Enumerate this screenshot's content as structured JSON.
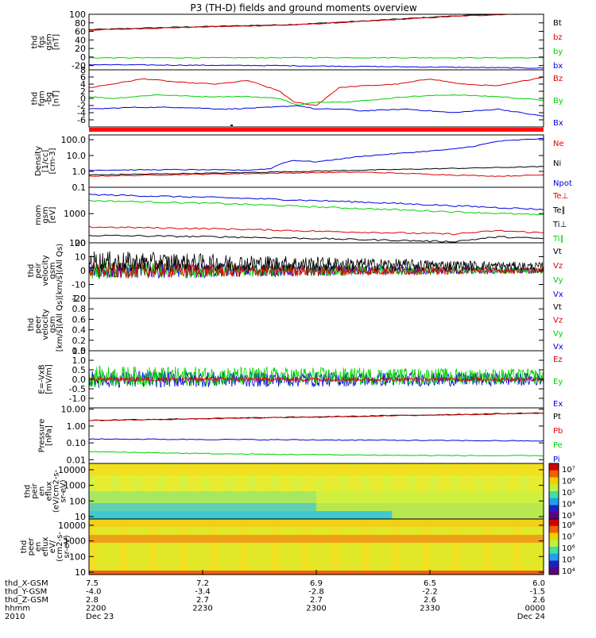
{
  "title": "P3 (TH-D) fields and ground moments overview",
  "colors": {
    "black": "#000000",
    "red": "#e00000",
    "green": "#00d000",
    "blue": "#0000e0"
  },
  "chart_data": [
    {
      "id": "fgs",
      "type": "line",
      "ylabel": [
        "thd",
        "fgs",
        "gsm",
        "[nT]"
      ],
      "ylim": [
        -30,
        100
      ],
      "yticks": [
        -20,
        0,
        20,
        40,
        60,
        80,
        100
      ],
      "legend": [
        {
          "name": "Bt",
          "color": "black"
        },
        {
          "name": "bz",
          "color": "red"
        },
        {
          "name": "by",
          "color": "green"
        },
        {
          "name": "bx",
          "color": "blue"
        }
      ],
      "series": [
        {
          "color": "black",
          "x": [
            0,
            0.2,
            0.45,
            0.6,
            0.8,
            1
          ],
          "y": [
            64,
            70,
            76,
            84,
            96,
            104
          ]
        },
        {
          "color": "red",
          "x": [
            0,
            0.2,
            0.45,
            0.6,
            0.8,
            1
          ],
          "y": [
            63,
            69,
            75,
            83,
            95,
            103
          ]
        },
        {
          "color": "green",
          "x": [
            0,
            0.5,
            1
          ],
          "y": [
            -2,
            -1.5,
            -2
          ]
        },
        {
          "color": "blue",
          "x": [
            0,
            0.4,
            0.8,
            1
          ],
          "y": [
            -18,
            -20,
            -24,
            -26
          ]
        }
      ]
    },
    {
      "id": "fgm",
      "type": "line",
      "ylabel": [
        "thd",
        "fgm",
        "-bg",
        "[nT]"
      ],
      "ylim": [
        -8,
        8
      ],
      "yticks": [
        -6,
        -4,
        -2,
        0,
        2,
        4,
        6,
        8
      ],
      "legend": [
        {
          "name": "Bz",
          "color": "red"
        },
        {
          "name": "By",
          "color": "green"
        },
        {
          "name": "Bx",
          "color": "blue"
        }
      ],
      "series": [
        {
          "color": "red",
          "x": [
            0,
            0.05,
            0.12,
            0.2,
            0.28,
            0.35,
            0.42,
            0.45,
            0.5,
            0.55,
            0.6,
            0.68,
            0.75,
            0.82,
            0.9,
            1
          ],
          "y": [
            3,
            4,
            5.5,
            4.5,
            4,
            5,
            2,
            -1,
            -2,
            3,
            3.5,
            4,
            5.5,
            4,
            3.5,
            6
          ]
        },
        {
          "color": "green",
          "x": [
            0,
            0.05,
            0.15,
            0.25,
            0.35,
            0.42,
            0.46,
            0.5,
            0.56,
            0.62,
            0.7,
            0.8,
            0.9,
            1
          ],
          "y": [
            0.5,
            0,
            1,
            0.5,
            0.5,
            0,
            -2,
            -1,
            -1,
            -0.5,
            0.5,
            1,
            0.5,
            -0.5
          ]
        },
        {
          "color": "blue",
          "x": [
            0,
            0.1,
            0.2,
            0.3,
            0.4,
            0.46,
            0.5,
            0.56,
            0.6,
            0.7,
            0.8,
            0.9,
            1
          ],
          "y": [
            -3,
            -2.5,
            -2.5,
            -3,
            -2.5,
            -2,
            -3,
            -3,
            -3.5,
            -3,
            -4,
            -3,
            -5
          ]
        }
      ]
    },
    {
      "id": "density",
      "type": "line",
      "scale": "log",
      "ylabel": [
        "Density",
        "[1/cc]",
        "[cm-3]"
      ],
      "ylim": [
        0.1,
        200
      ],
      "yticks": [
        0.1,
        1.0,
        10.0,
        100.0
      ],
      "ytick_labels": [
        "0.1",
        "1.0",
        "10.0",
        "100.0"
      ],
      "legend": [
        {
          "name": "Ne",
          "color": "red"
        },
        {
          "name": "Ni",
          "color": "black"
        },
        {
          "name": "Npot",
          "color": "blue"
        }
      ],
      "series": [
        {
          "color": "black",
          "x": [
            0,
            0.3,
            0.6,
            1
          ],
          "y": [
            0.6,
            0.8,
            1.2,
            2.0
          ]
        },
        {
          "color": "red",
          "x": [
            0,
            0.3,
            0.6,
            0.8,
            0.9,
            1
          ],
          "y": [
            0.5,
            0.7,
            0.9,
            0.6,
            0.5,
            0.6
          ]
        },
        {
          "color": "blue",
          "x": [
            0,
            0.2,
            0.35,
            0.4,
            0.42,
            0.45,
            0.5,
            0.55,
            0.6,
            0.7,
            0.8,
            0.85,
            0.9,
            1
          ],
          "y": [
            1.2,
            1.3,
            1.2,
            1.5,
            3,
            5,
            4,
            6,
            9,
            15,
            25,
            40,
            80,
            120
          ]
        }
      ]
    },
    {
      "id": "temp",
      "type": "line",
      "scale": "log",
      "ylabel": [
        "mom",
        "gsm",
        "[eV]"
      ],
      "ylim": [
        100,
        8000
      ],
      "yticks": [
        100,
        1000
      ],
      "ytick_labels": [
        "100",
        "1000"
      ],
      "legend": [
        {
          "name": "Te⊥",
          "color": "red"
        },
        {
          "name": "Te∥",
          "color": "black"
        },
        {
          "name": "Ti⊥",
          "color": "black"
        },
        {
          "name": "Ti∥",
          "color": "green"
        }
      ],
      "series": [
        {
          "color": "blue",
          "x": [
            0,
            0.3,
            0.6,
            1
          ],
          "y": [
            4500,
            3500,
            2500,
            1400
          ]
        },
        {
          "color": "green",
          "x": [
            0,
            0.3,
            0.6,
            1
          ],
          "y": [
            2800,
            2200,
            1500,
            900
          ]
        },
        {
          "color": "red",
          "x": [
            0,
            0.3,
            0.5,
            0.8,
            0.9,
            1
          ],
          "y": [
            350,
            300,
            250,
            200,
            260,
            220
          ]
        },
        {
          "color": "black",
          "x": [
            0,
            0.3,
            0.5,
            0.8,
            0.9,
            1
          ],
          "y": [
            180,
            160,
            140,
            110,
            160,
            140
          ]
        }
      ]
    },
    {
      "id": "peir_vel",
      "type": "line",
      "ylabel": [
        "thd",
        "peir",
        "velocity",
        "gsm",
        "[km/s](All Qs)"
      ],
      "ylim": [
        -20,
        20
      ],
      "yticks": [
        -20,
        -10,
        0,
        10,
        20
      ],
      "legend": [
        {
          "name": "Vt",
          "color": "black"
        },
        {
          "name": "Vz",
          "color": "red"
        },
        {
          "name": "Vy",
          "color": "green"
        },
        {
          "name": "Vx",
          "color": "blue"
        }
      ],
      "series": []
    },
    {
      "id": "peer_vel",
      "type": "line",
      "ylabel": [
        "thd",
        "peer",
        "velocity",
        "gsm",
        "[km/s](All Qs)"
      ],
      "ylim": [
        0,
        1
      ],
      "yticks": [
        0,
        0.2,
        0.4,
        0.6,
        0.8,
        1.0
      ],
      "ytick_labels": [
        "0.0",
        "0.2",
        "0.4",
        "0.6",
        "0.8",
        "1.0"
      ],
      "legend": [
        {
          "name": "Vt",
          "color": "black"
        },
        {
          "name": "Vz",
          "color": "red"
        },
        {
          "name": "Vy",
          "color": "green"
        },
        {
          "name": "Vx",
          "color": "blue"
        }
      ],
      "series": []
    },
    {
      "id": "efield",
      "type": "line",
      "ylabel": [
        "E=-VxB",
        "[mV/m]"
      ],
      "ylim": [
        -1.5,
        1.5
      ],
      "yticks": [
        -1.0,
        -0.5,
        0,
        0.5,
        1.0,
        1.5
      ],
      "ytick_labels": [
        "-1.0",
        "-0.5",
        "0.0",
        "0.5",
        "1.0",
        "1.5"
      ],
      "legend": [
        {
          "name": "Ez",
          "color": "red"
        },
        {
          "name": "Ey",
          "color": "green"
        },
        {
          "name": "Ex",
          "color": "blue"
        }
      ],
      "series": []
    },
    {
      "id": "pressure",
      "type": "line",
      "scale": "log",
      "ylabel": [
        "Pressure",
        "[nPa]"
      ],
      "ylim": [
        0.006,
        12
      ],
      "yticks": [
        0.01,
        0.1,
        1.0,
        10.0
      ],
      "ytick_labels": [
        "0.01",
        "0.10",
        "1.00",
        "10.00"
      ],
      "legend": [
        {
          "name": "Pt",
          "color": "black"
        },
        {
          "name": "Pb",
          "color": "red"
        },
        {
          "name": "Pe",
          "color": "green"
        },
        {
          "name": "Pi",
          "color": "blue"
        }
      ],
      "series": [
        {
          "color": "black",
          "x": [
            0,
            0.5,
            1
          ],
          "y": [
            2.2,
            3.5,
            6.0
          ]
        },
        {
          "color": "red",
          "x": [
            0,
            0.5,
            1
          ],
          "y": [
            2.1,
            3.4,
            5.8
          ]
        },
        {
          "color": "blue",
          "x": [
            0,
            0.5,
            1
          ],
          "y": [
            0.17,
            0.15,
            0.13
          ]
        },
        {
          "color": "green",
          "x": [
            0,
            0.3,
            0.5,
            0.7,
            1
          ],
          "y": [
            0.03,
            0.022,
            0.02,
            0.018,
            0.017
          ]
        }
      ]
    },
    {
      "id": "peir_spec",
      "type": "heatmap",
      "ylabel": [
        "thd",
        "peir",
        "en",
        "eflux",
        "(eV/cm2-s-",
        "sr-eV)"
      ],
      "yticks": [
        10,
        100,
        1000,
        10000
      ],
      "ytick_labels": [
        "10",
        "100",
        "1000",
        "10000"
      ],
      "colorbar_labels": [
        "10⁷",
        "10⁶",
        "10⁵",
        "10⁴",
        "10³"
      ]
    },
    {
      "id": "peer_spec",
      "type": "heatmap",
      "ylabel": [
        "thd",
        "peer",
        "en",
        "eflux",
        "eV/",
        "(cm2-s-",
        "sr-eV)"
      ],
      "yticks": [
        10,
        100,
        1000,
        10000
      ],
      "ytick_labels": [
        "10",
        "100",
        "1000",
        "10000"
      ],
      "colorbar_labels": [
        "10⁸",
        "10⁷",
        "10⁶",
        "10⁵",
        "10⁴"
      ]
    }
  ],
  "xaxis": {
    "row_labels": [
      "thd_X-GSM",
      "thd_Y-GSM",
      "thd_Z-GSM",
      "hhmm",
      "2010"
    ],
    "ticks": [
      {
        "values": [
          "7.5",
          "-4.0",
          "2.8",
          "2200",
          "Dec 23"
        ]
      },
      {
        "values": [
          "7.2",
          "-3.4",
          "2.7",
          "2230",
          ""
        ]
      },
      {
        "values": [
          "6.9",
          "-2.8",
          "2.7",
          "2300",
          ""
        ]
      },
      {
        "values": [
          "6.5",
          "-2.2",
          "2.6",
          "2330",
          ""
        ]
      },
      {
        "values": [
          "6.0",
          "-1.5",
          "2.6",
          "0000",
          "Dec 24"
        ]
      }
    ]
  }
}
